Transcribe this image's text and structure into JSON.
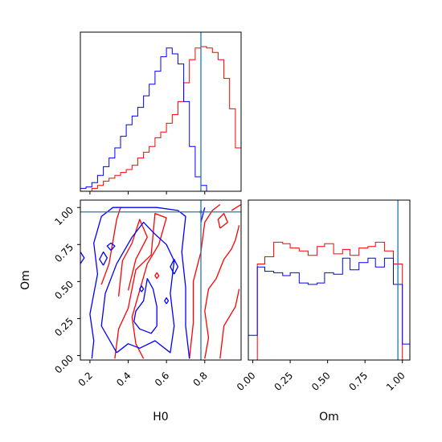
{
  "chart_data": {
    "type": "corner",
    "params": [
      "H0",
      "Om"
    ],
    "colors": {
      "run_a": "#ff0000",
      "run_b": "#0000ff",
      "truth": "#1f77b4"
    },
    "truth": {
      "H0": 0.78,
      "Om": 0.97
    },
    "xlabels": {
      "H0": "H0",
      "Om": "Om"
    },
    "ylabels": {
      "Om": "Om"
    },
    "ticks": {
      "H0": [
        "0.2",
        "0.4",
        "0.6",
        "0.8"
      ],
      "Om": [
        "0.00",
        "0.25",
        "0.50",
        "0.75",
        "1.00"
      ]
    },
    "ranges": {
      "H0": [
        0.15,
        0.99
      ],
      "Om": [
        -0.03,
        1.05
      ]
    },
    "hist_H0": {
      "edges": [
        0.15,
        0.18,
        0.21,
        0.24,
        0.27,
        0.3,
        0.33,
        0.36,
        0.39,
        0.42,
        0.45,
        0.48,
        0.51,
        0.54,
        0.57,
        0.6,
        0.63,
        0.66,
        0.69,
        0.72,
        0.75,
        0.78,
        0.81,
        0.84,
        0.87,
        0.9,
        0.93,
        0.96,
        0.99
      ],
      "red": [
        0.0,
        0.0,
        0.02,
        0.04,
        0.07,
        0.09,
        0.11,
        0.13,
        0.15,
        0.18,
        0.23,
        0.27,
        0.31,
        0.37,
        0.41,
        0.47,
        0.53,
        0.62,
        0.75,
        0.91,
        0.99,
        1.0,
        0.99,
        0.96,
        0.91,
        0.78,
        0.57,
        0.3
      ],
      "blue": [
        0.02,
        0.03,
        0.06,
        0.11,
        0.17,
        0.23,
        0.3,
        0.38,
        0.46,
        0.52,
        0.58,
        0.66,
        0.74,
        0.83,
        0.93,
        0.99,
        0.95,
        0.88,
        0.62,
        0.31,
        0.1,
        0.04,
        0.0,
        0.0,
        0.0,
        0.0,
        0.0,
        0.0
      ]
    },
    "hist_Om": {
      "edges": [
        -0.03,
        0.03,
        0.08,
        0.14,
        0.2,
        0.25,
        0.31,
        0.37,
        0.43,
        0.48,
        0.54,
        0.6,
        0.65,
        0.71,
        0.77,
        0.82,
        0.88,
        0.94,
        1.0,
        1.05
      ],
      "red": [
        0.0,
        0.66,
        0.71,
        0.81,
        0.8,
        0.77,
        0.75,
        0.72,
        0.78,
        0.8,
        0.73,
        0.76,
        0.72,
        0.77,
        0.78,
        0.81,
        0.75,
        0.66,
        0.0
      ],
      "blue": [
        0.17,
        0.64,
        0.61,
        0.6,
        0.58,
        0.6,
        0.53,
        0.52,
        0.53,
        0.6,
        0.59,
        0.7,
        0.62,
        0.67,
        0.7,
        0.64,
        0.7,
        0.52,
        0.11
      ]
    },
    "contours_red": [
      [
        [
          0.33,
          -0.02
        ],
        [
          0.35,
          0.18
        ],
        [
          0.4,
          0.32
        ],
        [
          0.44,
          0.58
        ],
        [
          0.52,
          0.68
        ],
        [
          0.54,
          0.96
        ],
        [
          0.6,
          0.93
        ],
        [
          0.56,
          0.75
        ],
        [
          0.5,
          0.62
        ],
        [
          0.46,
          0.44
        ],
        [
          0.42,
          0.26
        ],
        [
          0.44,
          0.08
        ],
        [
          0.48,
          -0.02
        ]
      ],
      [
        [
          0.35,
          0.4
        ],
        [
          0.37,
          0.64
        ],
        [
          0.42,
          0.76
        ],
        [
          0.46,
          0.92
        ],
        [
          0.5,
          0.8
        ],
        [
          0.44,
          0.65
        ],
        [
          0.4,
          0.44
        ]
      ],
      [
        [
          0.26,
          0.48
        ],
        [
          0.3,
          0.62
        ],
        [
          0.34,
          0.92
        ],
        [
          0.36,
          1.0
        ]
      ],
      [
        [
          0.72,
          -0.02
        ],
        [
          0.74,
          0.22
        ],
        [
          0.74,
          0.5
        ],
        [
          0.78,
          0.7
        ],
        [
          0.8,
          0.9
        ],
        [
          0.84,
          0.98
        ],
        [
          0.88,
          1.02
        ]
      ],
      [
        [
          0.8,
          -0.02
        ],
        [
          0.82,
          0.12
        ],
        [
          0.8,
          0.3
        ],
        [
          0.82,
          0.45
        ],
        [
          0.86,
          0.52
        ],
        [
          0.9,
          0.65
        ],
        [
          0.94,
          0.72
        ],
        [
          0.96,
          0.78
        ],
        [
          0.98,
          0.88
        ]
      ],
      [
        [
          0.88,
          -0.02
        ],
        [
          0.9,
          0.2
        ],
        [
          0.96,
          0.33
        ],
        [
          0.98,
          0.45
        ]
      ],
      [
        [
          0.94,
          0.98
        ],
        [
          0.99,
          1.02
        ]
      ],
      [
        [
          0.88,
          0.86
        ],
        [
          0.92,
          0.9
        ],
        [
          0.9,
          0.96
        ],
        [
          0.87,
          0.92
        ],
        [
          0.88,
          0.86
        ]
      ],
      [
        [
          0.55,
          0.52
        ],
        [
          0.56,
          0.54
        ],
        [
          0.55,
          0.56
        ],
        [
          0.54,
          0.54
        ],
        [
          0.55,
          0.52
        ]
      ]
    ],
    "contours_blue": [
      [
        [
          0.21,
          -0.02
        ],
        [
          0.22,
          0.1
        ],
        [
          0.2,
          0.28
        ],
        [
          0.24,
          0.55
        ],
        [
          0.22,
          0.76
        ],
        [
          0.26,
          0.94
        ],
        [
          0.32,
          1.0
        ],
        [
          0.55,
          1.0
        ],
        [
          0.66,
          0.98
        ],
        [
          0.7,
          0.94
        ],
        [
          0.68,
          0.7
        ],
        [
          0.7,
          0.46
        ],
        [
          0.7,
          0.2
        ],
        [
          0.72,
          -0.02
        ]
      ],
      [
        [
          0.34,
          0.02
        ],
        [
          0.4,
          0.08
        ],
        [
          0.46,
          0.05
        ],
        [
          0.54,
          0.1
        ],
        [
          0.62,
          0.02
        ],
        [
          0.64,
          0.2
        ],
        [
          0.62,
          0.42
        ],
        [
          0.64,
          0.64
        ],
        [
          0.6,
          0.75
        ],
        [
          0.54,
          0.82
        ],
        [
          0.48,
          0.9
        ],
        [
          0.42,
          0.8
        ],
        [
          0.34,
          0.62
        ],
        [
          0.28,
          0.42
        ],
        [
          0.26,
          0.2
        ],
        [
          0.34,
          0.02
        ]
      ],
      [
        [
          0.43,
          0.23
        ],
        [
          0.46,
          0.18
        ],
        [
          0.52,
          0.15
        ],
        [
          0.55,
          0.2
        ],
        [
          0.55,
          0.33
        ],
        [
          0.53,
          0.45
        ],
        [
          0.5,
          0.52
        ],
        [
          0.48,
          0.37
        ],
        [
          0.44,
          0.3
        ],
        [
          0.43,
          0.23
        ]
      ],
      [
        [
          0.27,
          0.61
        ],
        [
          0.29,
          0.66
        ],
        [
          0.27,
          0.7
        ],
        [
          0.25,
          0.65
        ],
        [
          0.27,
          0.61
        ]
      ],
      [
        [
          0.31,
          0.71
        ],
        [
          0.33,
          0.74
        ],
        [
          0.31,
          0.76
        ],
        [
          0.29,
          0.74
        ],
        [
          0.31,
          0.71
        ]
      ],
      [
        [
          0.47,
          0.43
        ],
        [
          0.48,
          0.45
        ],
        [
          0.47,
          0.47
        ],
        [
          0.46,
          0.45
        ],
        [
          0.47,
          0.43
        ]
      ],
      [
        [
          0.6,
          0.35
        ],
        [
          0.61,
          0.37
        ],
        [
          0.6,
          0.39
        ],
        [
          0.59,
          0.37
        ],
        [
          0.6,
          0.35
        ]
      ],
      [
        [
          0.64,
          0.55
        ],
        [
          0.66,
          0.6
        ],
        [
          0.64,
          0.65
        ],
        [
          0.62,
          0.6
        ],
        [
          0.64,
          0.55
        ]
      ],
      [
        [
          0.15,
          0.62
        ],
        [
          0.17,
          0.66
        ],
        [
          0.15,
          0.7
        ]
      ],
      [
        [
          0.78,
          0.9
        ],
        [
          0.8,
          1.0
        ]
      ]
    ]
  }
}
